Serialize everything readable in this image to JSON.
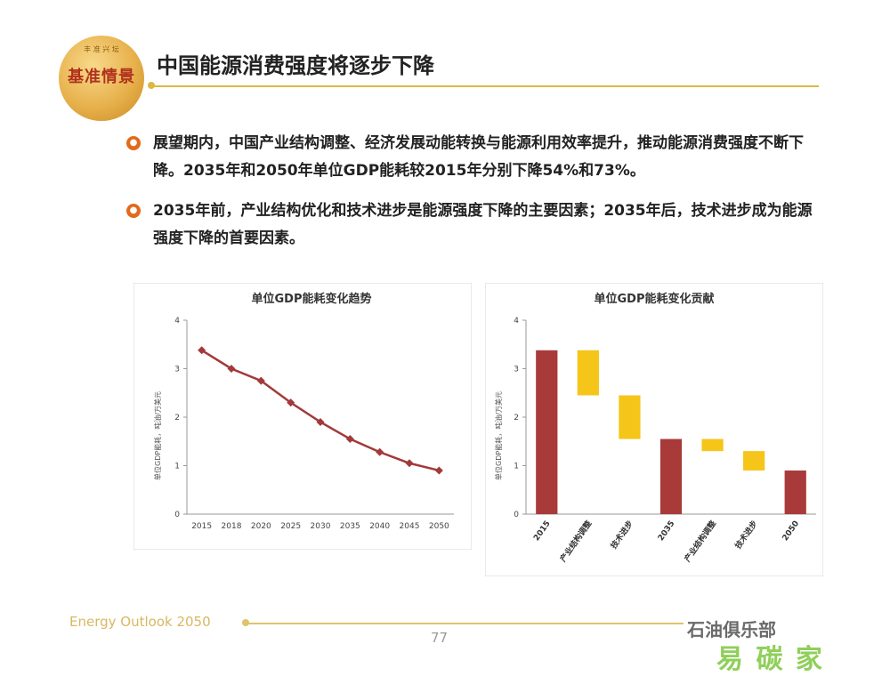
{
  "header": {
    "badge_small": "丰 准 兴 坛",
    "badge_label": "基准情景",
    "title": "中国能源消费强度将逐步下降"
  },
  "bullets": [
    {
      "icon": "flame-bullet-icon",
      "text": "展望期内，中国产业结构调整、经济发展动能转换与能源利用效率提升，推动能源消费强度不断下降。2035年和2050年单位GDP能耗较2015年分别下降54%和73%。"
    },
    {
      "icon": "flame-bullet-icon",
      "text": "2035年前，产业结构优化和技术进步是能源强度下降的主要因素；2035年后，技术进步成为能源强度下降的首要因素。"
    }
  ],
  "chart_data": [
    {
      "type": "line",
      "title": "单位GDP能耗变化趋势",
      "ylabel": "单位GDP能耗，吨油/万美元",
      "xlabel": "",
      "categories": [
        "2015",
        "2018",
        "2020",
        "2025",
        "2030",
        "2035",
        "2040",
        "2045",
        "2050"
      ],
      "values": [
        3.38,
        3.0,
        2.75,
        2.3,
        1.9,
        1.55,
        1.28,
        1.05,
        0.9
      ],
      "ylim": [
        0,
        4
      ],
      "yticks": [
        0,
        1,
        2,
        3,
        4
      ],
      "color": "#a23a3a",
      "grid": false
    },
    {
      "type": "bar",
      "title": "单位GDP能耗变化贡献",
      "ylabel": "单位GDP能耗，吨油/万美元",
      "xlabel": "",
      "categories": [
        "2015",
        "产业结构调整",
        "技术进步",
        "2035",
        "产业结构调整",
        "技术进步",
        "2050"
      ],
      "bars": [
        {
          "low": 0,
          "high": 3.38,
          "kind": "total"
        },
        {
          "low": 2.45,
          "high": 3.38,
          "kind": "change"
        },
        {
          "low": 1.55,
          "high": 2.45,
          "kind": "change"
        },
        {
          "low": 0,
          "high": 1.55,
          "kind": "total"
        },
        {
          "low": 1.3,
          "high": 1.55,
          "kind": "change"
        },
        {
          "low": 0.9,
          "high": 1.3,
          "kind": "change"
        },
        {
          "low": 0,
          "high": 0.9,
          "kind": "total"
        }
      ],
      "ylim": [
        0,
        4
      ],
      "yticks": [
        0,
        1,
        2,
        3,
        4
      ],
      "colors": {
        "total": "#a93a3a",
        "change": "#f5c51a"
      },
      "grid": false
    }
  ],
  "footer": {
    "left_text": "Energy Outlook 2050",
    "page_number": "77",
    "watermark_1": "石油俱乐部",
    "watermark_2": "易 碳 家"
  }
}
